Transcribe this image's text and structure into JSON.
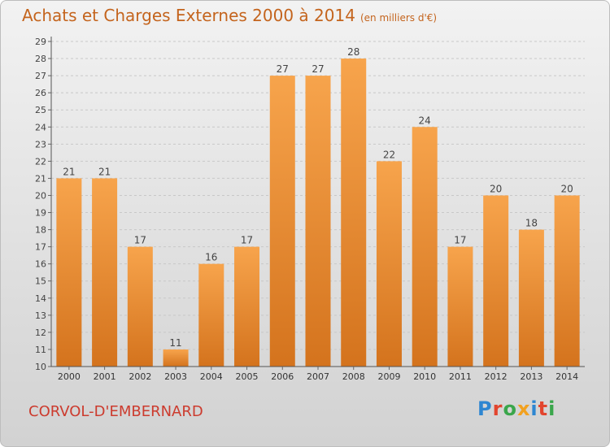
{
  "title": "Achats et Charges Externes 2000 à 2014",
  "unit": "(en milliers d'€)",
  "city": "CORVOL-D'EMBERNARD",
  "brand": "Proxiti",
  "colors": {
    "bar": "#f29a3c",
    "title": "#c4641d",
    "city": "#cc3b2e"
  },
  "chart_data": {
    "type": "bar",
    "title": "Achats et Charges Externes 2000 à 2014",
    "xlabel": "",
    "ylabel": "",
    "ylim": [
      10,
      29
    ],
    "grid": true,
    "categories": [
      "2000",
      "2001",
      "2002",
      "2003",
      "2004",
      "2005",
      "2006",
      "2007",
      "2008",
      "2009",
      "2010",
      "2011",
      "2012",
      "2013",
      "2014"
    ],
    "values": [
      21,
      21,
      17,
      11,
      16,
      17,
      27,
      27,
      28,
      22,
      24,
      17,
      20,
      18,
      20
    ]
  }
}
